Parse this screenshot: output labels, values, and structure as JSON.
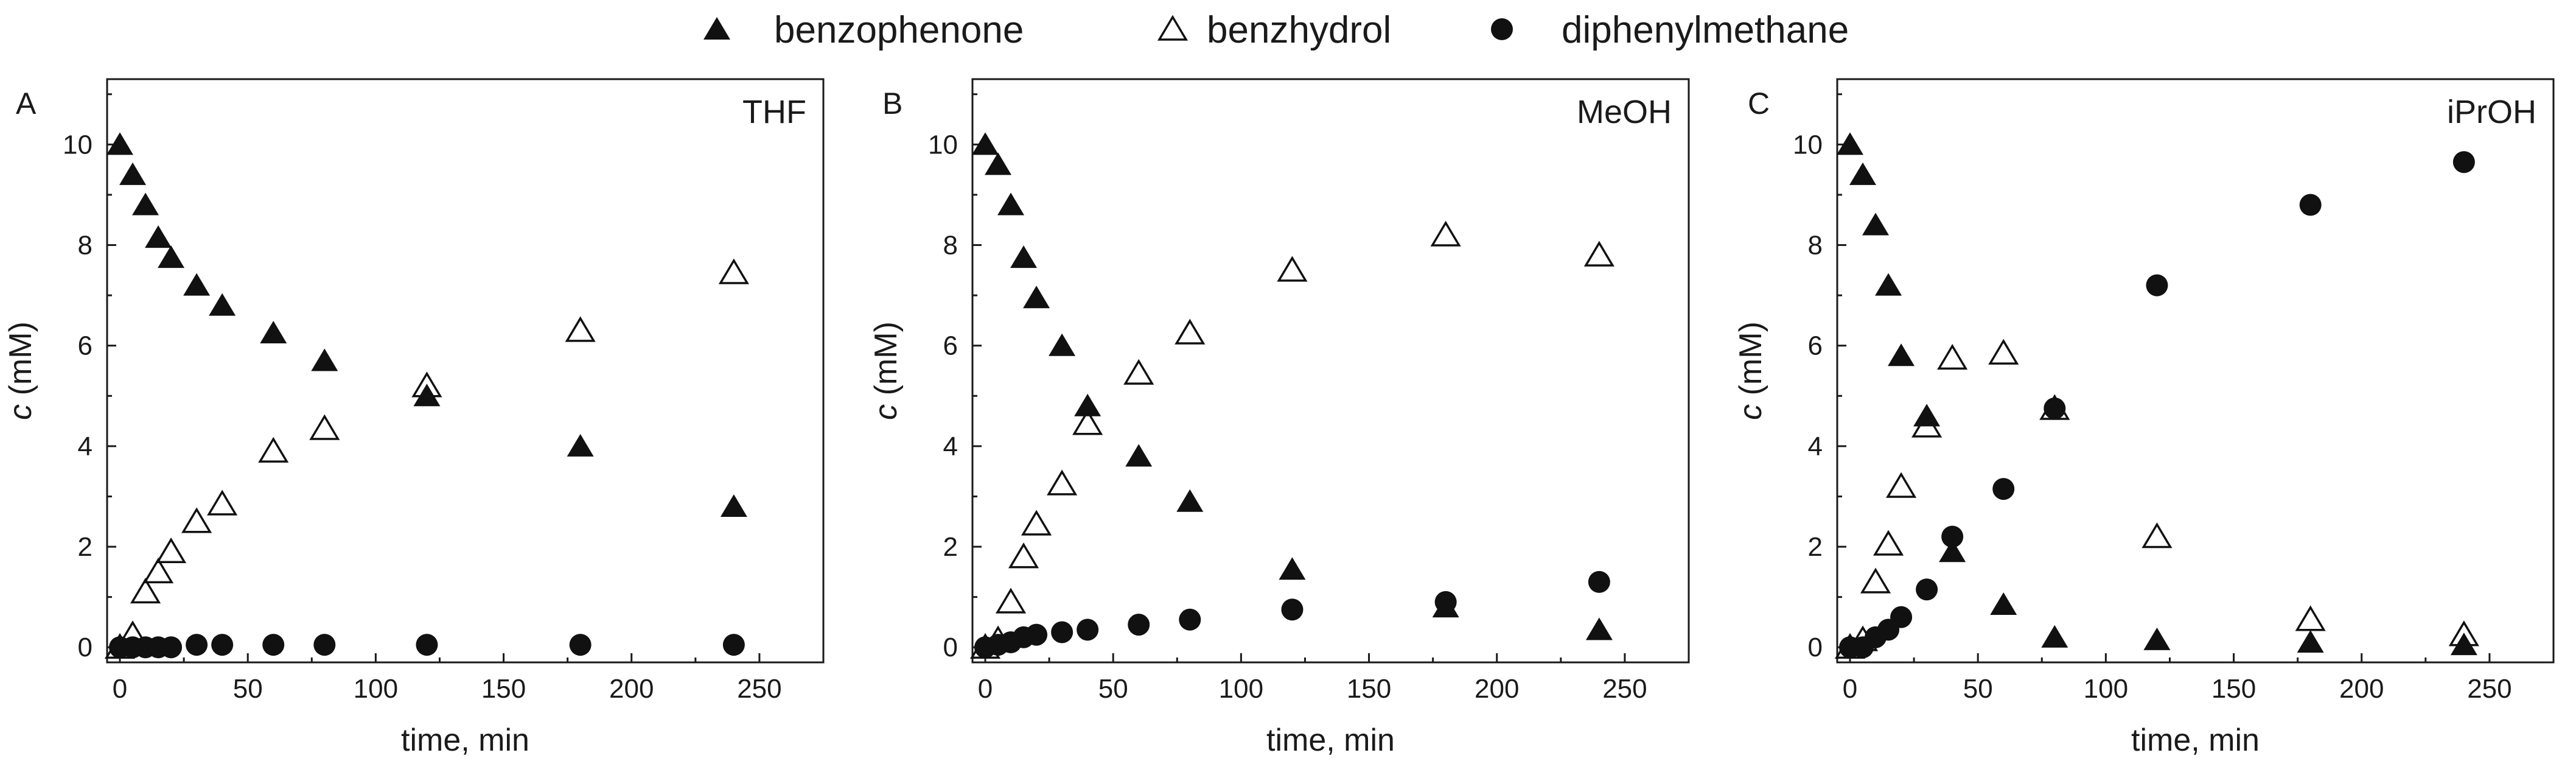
{
  "legend": [
    {
      "label": "benzophenone",
      "marker": "filled-triangle"
    },
    {
      "label": "benzhydrol",
      "marker": "open-triangle"
    },
    {
      "label": "diphenylmethane",
      "marker": "filled-circle"
    }
  ],
  "chart_data": [
    {
      "type": "scatter",
      "panel": "A",
      "title": "THF",
      "xlabel": "time, min",
      "ylabel_italic": "c",
      "ylabel_rest": " (mM)",
      "xlim": [
        -5,
        275
      ],
      "ylim": [
        -0.3,
        11.3
      ],
      "xticks": [
        0,
        50,
        100,
        150,
        200,
        250
      ],
      "yticks": [
        0,
        2,
        4,
        6,
        8,
        10
      ],
      "series": [
        {
          "name": "benzophenone",
          "x": [
            0,
            5,
            10,
            15,
            20,
            30,
            40,
            60,
            80,
            120,
            180,
            240
          ],
          "y": [
            10.0,
            9.4,
            8.8,
            8.15,
            7.75,
            7.2,
            6.8,
            6.25,
            5.7,
            5.0,
            4.0,
            2.8
          ]
        },
        {
          "name": "benzhydrol",
          "x": [
            0,
            5,
            10,
            15,
            20,
            30,
            40,
            60,
            80,
            120,
            180,
            240
          ],
          "y": [
            0.0,
            0.25,
            1.1,
            1.5,
            1.9,
            2.5,
            2.85,
            3.9,
            4.35,
            5.2,
            6.3,
            7.45
          ]
        },
        {
          "name": "diphenylmethane",
          "x": [
            0,
            5,
            10,
            15,
            20,
            30,
            40,
            60,
            80,
            120,
            180,
            240
          ],
          "y": [
            0.0,
            0.0,
            0.0,
            0.0,
            0.0,
            0.05,
            0.05,
            0.05,
            0.05,
            0.05,
            0.05,
            0.05
          ]
        }
      ]
    },
    {
      "type": "scatter",
      "panel": "B",
      "title": "MeOH",
      "xlabel": "time, min",
      "ylabel_italic": "c",
      "ylabel_rest": " (mM)",
      "xlim": [
        -5,
        275
      ],
      "ylim": [
        -0.3,
        11.3
      ],
      "xticks": [
        0,
        50,
        100,
        150,
        200,
        250
      ],
      "yticks": [
        0,
        2,
        4,
        6,
        8,
        10
      ],
      "series": [
        {
          "name": "benzophenone",
          "x": [
            0,
            5,
            10,
            15,
            20,
            30,
            40,
            60,
            80,
            120,
            180,
            240
          ],
          "y": [
            10.0,
            9.6,
            8.8,
            7.75,
            6.95,
            6.0,
            4.8,
            3.8,
            2.9,
            1.55,
            0.8,
            0.35
          ]
        },
        {
          "name": "benzhydrol",
          "x": [
            0,
            5,
            10,
            15,
            20,
            30,
            40,
            60,
            80,
            120,
            180,
            240
          ],
          "y": [
            0.0,
            0.15,
            0.9,
            1.8,
            2.45,
            3.25,
            4.45,
            5.45,
            6.25,
            7.5,
            8.2,
            7.8
          ]
        },
        {
          "name": "diphenylmethane",
          "x": [
            0,
            5,
            10,
            15,
            20,
            30,
            40,
            60,
            80,
            120,
            180,
            240
          ],
          "y": [
            0.0,
            0.05,
            0.1,
            0.2,
            0.25,
            0.3,
            0.35,
            0.45,
            0.55,
            0.75,
            0.9,
            1.3
          ]
        }
      ]
    },
    {
      "type": "scatter",
      "panel": "C",
      "title": "iPrOH",
      "xlabel": "time, min",
      "ylabel_italic": "c",
      "ylabel_rest": " (mM)",
      "xlim": [
        -5,
        275
      ],
      "ylim": [
        -0.3,
        11.3
      ],
      "xticks": [
        0,
        50,
        100,
        150,
        200,
        250
      ],
      "yticks": [
        0,
        2,
        4,
        6,
        8,
        10
      ],
      "series": [
        {
          "name": "benzophenone",
          "x": [
            0,
            5,
            10,
            15,
            20,
            30,
            40,
            60,
            80,
            120,
            180,
            240
          ],
          "y": [
            10.0,
            9.4,
            8.4,
            7.2,
            5.8,
            4.6,
            1.9,
            0.85,
            0.2,
            0.15,
            0.1,
            0.05
          ]
        },
        {
          "name": "benzhydrol",
          "x": [
            0,
            5,
            10,
            15,
            20,
            30,
            40,
            60,
            80,
            120,
            180,
            240
          ],
          "y": [
            0.0,
            0.15,
            1.3,
            2.05,
            3.2,
            4.4,
            5.75,
            5.85,
            4.75,
            2.2,
            0.55,
            0.25
          ]
        },
        {
          "name": "diphenylmethane",
          "x": [
            0,
            5,
            10,
            15,
            20,
            30,
            40,
            60,
            80,
            120,
            180,
            240
          ],
          "y": [
            0.0,
            0.0,
            0.2,
            0.35,
            0.6,
            1.15,
            2.2,
            3.15,
            4.75,
            7.2,
            8.8,
            9.65
          ]
        }
      ]
    }
  ]
}
